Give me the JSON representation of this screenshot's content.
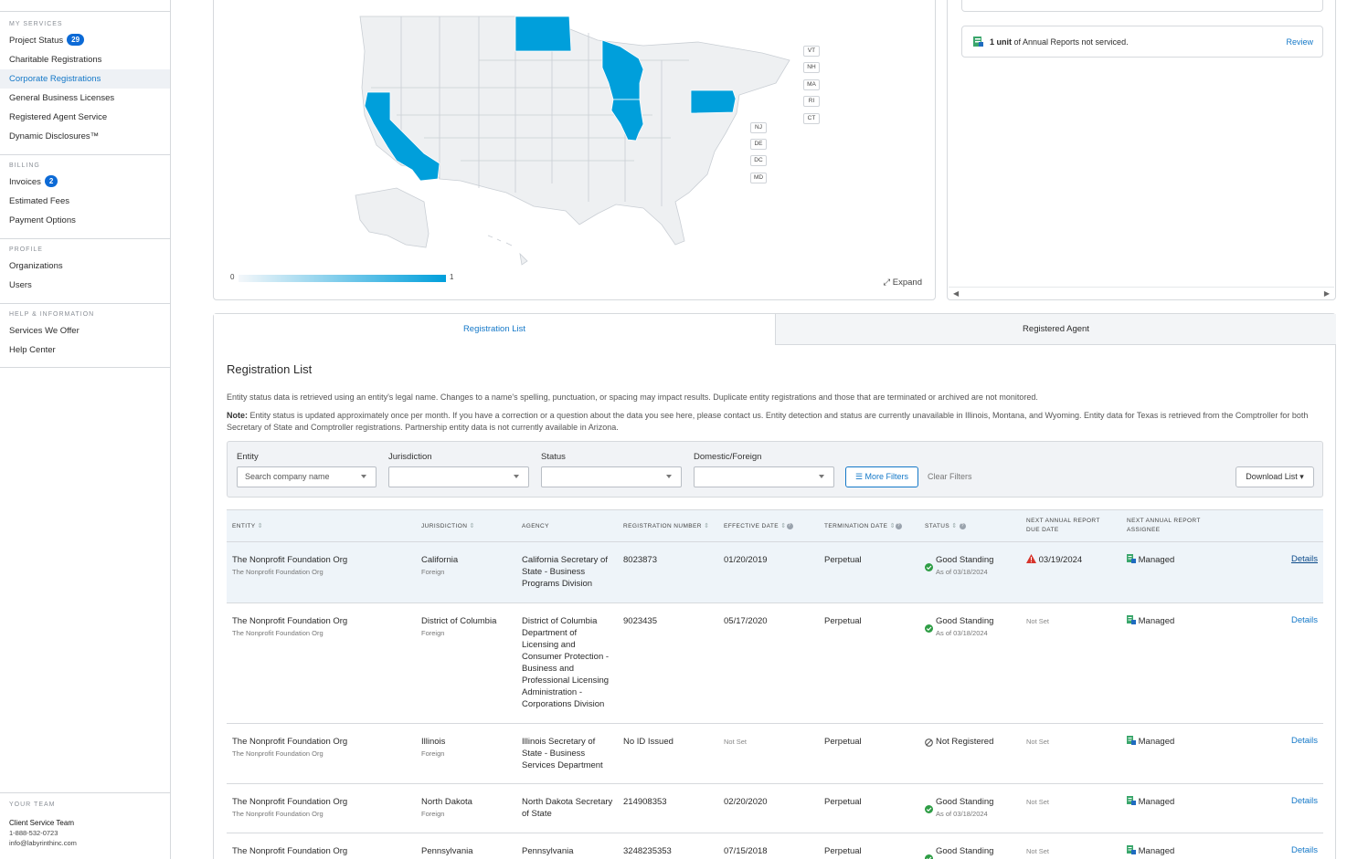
{
  "sidebar": {
    "sections": [
      {
        "title": "MY SERVICES",
        "items": [
          {
            "label": "Project Status",
            "badge": "29"
          },
          {
            "label": "Charitable Registrations"
          },
          {
            "label": "Corporate Registrations",
            "active": true
          },
          {
            "label": "General Business Licenses"
          },
          {
            "label": "Registered Agent Service"
          },
          {
            "label": "Dynamic Disclosures™"
          }
        ]
      },
      {
        "title": "BILLING",
        "items": [
          {
            "label": "Invoices",
            "badge": "2"
          },
          {
            "label": "Estimated Fees"
          },
          {
            "label": "Payment Options"
          }
        ]
      },
      {
        "title": "PROFILE",
        "items": [
          {
            "label": "Organizations"
          },
          {
            "label": "Users"
          }
        ]
      },
      {
        "title": "HELP & INFORMATION",
        "items": [
          {
            "label": "Services We Offer"
          },
          {
            "label": "Help Center"
          }
        ]
      }
    ],
    "team": {
      "title": "YOUR TEAM",
      "name": "Client Service Team",
      "phone": "1-888-532-0723",
      "email": "info@labyrinthinc.com"
    }
  },
  "map": {
    "small_states": [
      "VT",
      "NH",
      "MA",
      "RI",
      "CT",
      "NJ",
      "DE",
      "DC",
      "MD"
    ],
    "highlighted_states": [
      "California",
      "North Dakota",
      "Wisconsin",
      "Illinois",
      "Pennsylvania"
    ],
    "legend_min": "0",
    "legend_max": "1",
    "expand_label": "Expand",
    "highlight_color": "#009fdb",
    "base_color": "#eef0f2"
  },
  "alerts": {
    "count_text": "1 unit",
    "message": " of Annual Reports not serviced.",
    "action": "Review"
  },
  "tabs": {
    "registration_list": "Registration List",
    "registered_agent": "Registered Agent"
  },
  "registration": {
    "title": "Registration List",
    "description": "Entity status data is retrieved using an entity's legal name. Changes to a name's spelling, punctuation, or spacing may impact results. Duplicate entity registrations and those that are terminated or archived are not monitored.",
    "note_label": "Note:",
    "note": " Entity status is updated approximately once per month. If you have a correction or a question about the data you see here, please contact us. Entity detection and status are currently unavailable in Illinois, Montana, and Wyoming. Entity data for Texas is retrieved from the Comptroller for both Secretary of State and Comptroller registrations. Partnership entity data is not currently available in Arizona."
  },
  "filters": {
    "entity_label": "Entity",
    "entity_placeholder": "Search company name",
    "jurisdiction_label": "Jurisdiction",
    "status_label": "Status",
    "domestic_label": "Domestic/Foreign",
    "more_filters": "More Filters",
    "clear_filters": "Clear Filters",
    "download": "Download List"
  },
  "table": {
    "headers": {
      "entity": "ENTITY",
      "jurisdiction": "JURISDICTION",
      "agency": "AGENCY",
      "reg_number": "REGISTRATION NUMBER",
      "effective": "EFFECTIVE DATE",
      "termination": "TERMINATION DATE",
      "status": "STATUS",
      "next_due_1": "NEXT ANNUAL REPORT",
      "next_due_2": "DUE DATE",
      "next_assignee_1": "NEXT ANNUAL REPORT",
      "next_assignee_2": "ASSIGNEE"
    },
    "rows": [
      {
        "entity": "The Nonprofit Foundation Org",
        "entity_sub": "The Nonprofit Foundation Org",
        "jurisdiction": "California",
        "type": "Foreign",
        "agency": "California Secretary of State - Business Programs Division",
        "reg": "8023873",
        "effective": "01/20/2019",
        "termination": "Perpetual",
        "status": "Good Standing",
        "status_sub": "As of 03/18/2024",
        "due": "03/19/2024",
        "assignee": "Managed",
        "details": "Details"
      },
      {
        "entity": "The Nonprofit Foundation Org",
        "entity_sub": "The Nonprofit Foundation Org",
        "jurisdiction": "District of Columbia",
        "type": "Foreign",
        "agency": "District of Columbia Department of Licensing and Consumer Protection - Business and Professional Licensing Administration - Corporations Division",
        "reg": "9023435",
        "effective": "05/17/2020",
        "termination": "Perpetual",
        "status": "Good Standing",
        "status_sub": "As of 03/18/2024",
        "due": "Not Set",
        "assignee": "Managed",
        "details": "Details"
      },
      {
        "entity": "The Nonprofit Foundation Org",
        "entity_sub": "The Nonprofit Foundation Org",
        "jurisdiction": "Illinois",
        "type": "Foreign",
        "agency": "Illinois Secretary of State - Business Services Department",
        "reg": "No ID Issued",
        "effective": "Not Set",
        "termination": "Perpetual",
        "status": "Not Registered",
        "status_sub": "",
        "due": "Not Set",
        "assignee": "Managed",
        "details": "Details"
      },
      {
        "entity": "The Nonprofit Foundation Org",
        "entity_sub": "The Nonprofit Foundation Org",
        "jurisdiction": "North Dakota",
        "type": "Foreign",
        "agency": "North Dakota Secretary of State",
        "reg": "214908353",
        "effective": "02/20/2020",
        "termination": "Perpetual",
        "status": "Good Standing",
        "status_sub": "As of 03/18/2024",
        "due": "Not Set",
        "assignee": "Managed",
        "details": "Details"
      },
      {
        "entity": "The Nonprofit Foundation Org",
        "entity_sub": "",
        "jurisdiction": "Pennsylvania",
        "type": "",
        "agency": "Pennsylvania",
        "reg": "3248235353",
        "effective": "07/15/2018",
        "termination": "Perpetual",
        "status": "Good Standing",
        "status_sub": "",
        "due": "Not Set",
        "assignee": "Managed",
        "details": "Details"
      }
    ]
  }
}
